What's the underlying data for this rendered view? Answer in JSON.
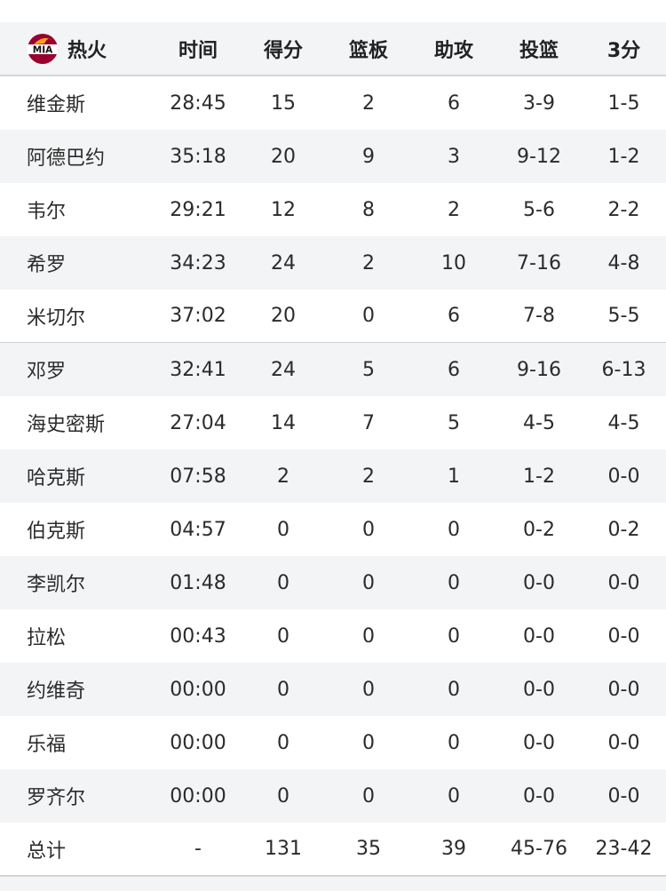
{
  "team": {
    "name": "热火",
    "logo_text": "MIA",
    "logo_colors": {
      "red": "#98002e",
      "orange": "#f9a01b",
      "black": "#111111"
    }
  },
  "columns": [
    "时间",
    "得分",
    "篮板",
    "助攻",
    "投篮",
    "3分"
  ],
  "players": [
    [
      "维金斯",
      "28:45",
      "15",
      "2",
      "6",
      "3-9",
      "1-5"
    ],
    [
      "阿德巴约",
      "35:18",
      "20",
      "9",
      "3",
      "9-12",
      "1-2"
    ],
    [
      "韦尔",
      "29:21",
      "12",
      "8",
      "2",
      "5-6",
      "2-2"
    ],
    [
      "希罗",
      "34:23",
      "24",
      "2",
      "10",
      "7-16",
      "4-8"
    ],
    [
      "米切尔",
      "37:02",
      "20",
      "0",
      "6",
      "7-8",
      "5-5"
    ],
    [
      "邓罗",
      "32:41",
      "24",
      "5",
      "6",
      "9-16",
      "6-13"
    ],
    [
      "海史密斯",
      "27:04",
      "14",
      "7",
      "5",
      "4-5",
      "4-5"
    ],
    [
      "哈克斯",
      "07:58",
      "2",
      "2",
      "1",
      "1-2",
      "0-0"
    ],
    [
      "伯克斯",
      "04:57",
      "0",
      "0",
      "0",
      "0-2",
      "0-2"
    ],
    [
      "李凯尔",
      "01:48",
      "0",
      "0",
      "0",
      "0-0",
      "0-0"
    ],
    [
      "拉松",
      "00:43",
      "0",
      "0",
      "0",
      "0-0",
      "0-0"
    ],
    [
      "约维奇",
      "00:00",
      "0",
      "0",
      "0",
      "0-0",
      "0-0"
    ],
    [
      "乐福",
      "00:00",
      "0",
      "0",
      "0",
      "0-0",
      "0-0"
    ],
    [
      "罗齐尔",
      "00:00",
      "0",
      "0",
      "0",
      "0-0",
      "0-0"
    ]
  ],
  "totals": [
    "总计",
    "-",
    "131",
    "35",
    "39",
    "45-76",
    "23-42"
  ]
}
